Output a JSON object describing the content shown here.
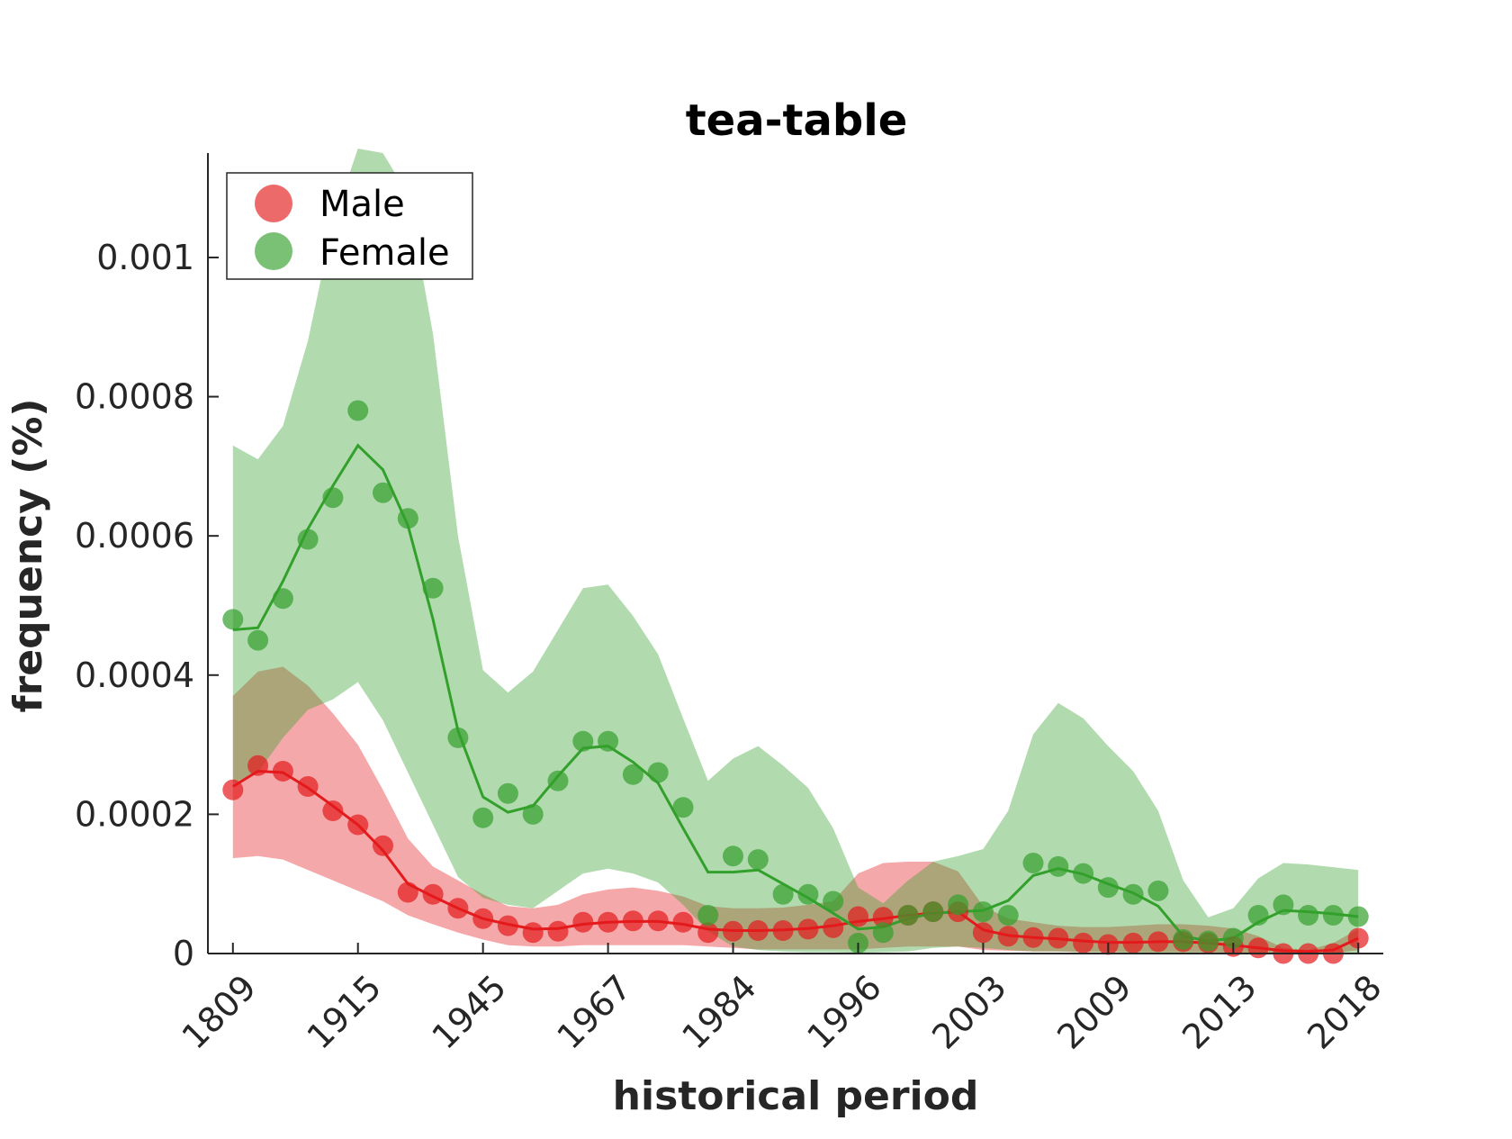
{
  "chart_data": {
    "type": "line",
    "title": "tea-table",
    "xlabel": "historical period",
    "ylabel": "frequency (%)",
    "ylim": [
      0,
      0.00115
    ],
    "yticks": [
      "0",
      "0.0002",
      "0.0004",
      "0.0006",
      "0.0008",
      "0.001"
    ],
    "ytick_values": [
      0,
      0.0002,
      0.0004,
      0.0006,
      0.0008,
      0.001
    ],
    "xtick_labels": [
      "1809",
      "1915",
      "1945",
      "1967",
      "1984",
      "1996",
      "2003",
      "2009",
      "2013",
      "2018"
    ],
    "xtick_positions": [
      1,
      6,
      11,
      16,
      21,
      26,
      31,
      36,
      41,
      46
    ],
    "xlim": [
      0,
      47
    ],
    "grid": false,
    "legend_position": "top-left",
    "series": [
      {
        "name": "Male",
        "color": "#e41a1c",
        "x": [
          1,
          2,
          3,
          4,
          5,
          6,
          7,
          8,
          9,
          10,
          11,
          12,
          13,
          14,
          15,
          16,
          17,
          18,
          19,
          20,
          21,
          22,
          23,
          24,
          25,
          26,
          27,
          28,
          29,
          30,
          31,
          32,
          33,
          34,
          35,
          36,
          37,
          38,
          39,
          40,
          41,
          42,
          43,
          44,
          45,
          46
        ],
        "points": [
          0.000235,
          0.00027,
          0.000262,
          0.00024,
          0.000205,
          0.000185,
          0.000155,
          8.8e-05,
          8.5e-05,
          6.5e-05,
          5e-05,
          4e-05,
          3e-05,
          3.2e-05,
          4.5e-05,
          4.5e-05,
          4.7e-05,
          4.7e-05,
          4.5e-05,
          3e-05,
          3.2e-05,
          3.3e-05,
          3.3e-05,
          3.5e-05,
          3.7e-05,
          5.3e-05,
          5.2e-05,
          5.5e-05,
          6e-05,
          6e-05,
          3e-05,
          2.5e-05,
          2.3e-05,
          2.2e-05,
          1.5e-05,
          1.3e-05,
          1.5e-05,
          1.7e-05,
          1.7e-05,
          1.5e-05,
          1e-05,
          8e-06,
          0,
          0,
          0,
          2.2e-05
        ],
        "line": [
          0.00024,
          0.000262,
          0.00026,
          0.000238,
          0.000212,
          0.000185,
          0.000148,
          0.0001,
          8.2e-05,
          6.5e-05,
          5e-05,
          4.2e-05,
          3.5e-05,
          3.6e-05,
          4.2e-05,
          4.5e-05,
          4.6e-05,
          4.6e-05,
          4.2e-05,
          3.5e-05,
          3.3e-05,
          3.3e-05,
          3.4e-05,
          3.6e-05,
          4e-05,
          4.6e-05,
          5e-05,
          5.5e-05,
          5.8e-05,
          6e-05,
          3.4e-05,
          2.6e-05,
          2.3e-05,
          2.1e-05,
          1.8e-05,
          1.6e-05,
          1.6e-05,
          1.7e-05,
          1.7e-05,
          1.5e-05,
          1.2e-05,
          8e-06,
          4e-06,
          3e-06,
          5e-06,
          2.2e-05
        ],
        "band_upper": [
          0.00037,
          0.000405,
          0.000412,
          0.000385,
          0.000345,
          0.0003,
          0.000235,
          0.000165,
          0.000125,
          0.000105,
          8.5e-05,
          6.8e-05,
          6.5e-05,
          7e-05,
          8.5e-05,
          9.2e-05,
          9.5e-05,
          9e-05,
          8.2e-05,
          6.8e-05,
          6.5e-05,
          6.5e-05,
          6.6e-05,
          7e-05,
          7.5e-05,
          0.000115,
          0.00013,
          0.000132,
          0.000132,
          0.000118,
          6.8e-05,
          5e-05,
          4.5e-05,
          4e-05,
          3.8e-05,
          3.8e-05,
          4e-05,
          4.2e-05,
          4.2e-05,
          4e-05,
          3.6e-05,
          2.5e-05,
          8e-06,
          5e-06,
          1.5e-05,
          3.5e-05
        ],
        "band_lower": [
          0.000137,
          0.00014,
          0.000135,
          0.00012,
          0.000105,
          9e-05,
          7.5e-05,
          5.5e-05,
          4.2e-05,
          3e-05,
          2e-05,
          1.2e-05,
          1e-05,
          1e-05,
          1.2e-05,
          1.2e-05,
          1.2e-05,
          1.2e-05,
          1.2e-05,
          1e-05,
          8e-06,
          6e-06,
          6e-06,
          6e-06,
          6e-06,
          6e-06,
          8e-06,
          1e-05,
          1e-05,
          1e-05,
          5e-06,
          4e-06,
          3e-06,
          3e-06,
          2e-06,
          2e-06,
          2e-06,
          2e-06,
          2e-06,
          2e-06,
          1e-06,
          1e-06,
          0,
          0,
          0,
          5e-06
        ]
      },
      {
        "name": "Female",
        "color": "#33a02c",
        "x": [
          1,
          2,
          3,
          4,
          5,
          6,
          7,
          8,
          9,
          10,
          11,
          12,
          13,
          14,
          15,
          16,
          17,
          18,
          19,
          20,
          21,
          22,
          23,
          24,
          25,
          26,
          27,
          28,
          29,
          30,
          31,
          32,
          33,
          34,
          35,
          36,
          37,
          38,
          39,
          40,
          41,
          42,
          43,
          44,
          45,
          46
        ],
        "points": [
          0.00048,
          0.00045,
          0.00051,
          0.000595,
          0.000655,
          0.00078,
          0.000662,
          0.000625,
          0.000525,
          0.00031,
          0.000195,
          0.00023,
          0.0002,
          0.000248,
          0.000305,
          0.000305,
          0.000257,
          0.00026,
          0.00021,
          5.5e-05,
          0.00014,
          0.000135,
          8.5e-05,
          8.5e-05,
          7.5e-05,
          1.5e-05,
          3e-05,
          5.5e-05,
          6e-05,
          7e-05,
          6e-05,
          5.5e-05,
          0.00013,
          0.000125,
          0.000115,
          9.5e-05,
          8.5e-05,
          9e-05,
          2e-05,
          1.8e-05,
          2.2e-05,
          5.5e-05,
          7e-05,
          5.5e-05,
          5.5e-05,
          5.3e-05
        ],
        "line": [
          0.000465,
          0.000468,
          0.000535,
          0.00061,
          0.000672,
          0.00073,
          0.000695,
          0.000615,
          0.00048,
          0.00032,
          0.000225,
          0.000203,
          0.000212,
          0.000255,
          0.000295,
          0.000298,
          0.000275,
          0.000245,
          0.00018,
          0.000117,
          0.000117,
          0.00012,
          0.0001,
          8e-05,
          5.8e-05,
          3.5e-05,
          3.8e-05,
          5e-05,
          5.8e-05,
          6e-05,
          6.2e-05,
          7.6e-05,
          0.000112,
          0.000122,
          0.000114,
          0.0001,
          8.7e-05,
          6.8e-05,
          2.5e-05,
          1.8e-05,
          2.2e-05,
          4.5e-05,
          6.2e-05,
          6e-05,
          5.7e-05,
          5.3e-05
        ],
        "band_upper": [
          0.00073,
          0.00071,
          0.000758,
          0.00088,
          0.00105,
          0.00116,
          0.00115,
          0.00109,
          0.00089,
          0.0006,
          0.000407,
          0.000375,
          0.000405,
          0.000465,
          0.000525,
          0.00053,
          0.000485,
          0.00043,
          0.000338,
          0.000248,
          0.00028,
          0.000298,
          0.00027,
          0.000238,
          0.00018,
          9.5e-05,
          7.2e-05,
          0.000105,
          0.000132,
          0.00014,
          0.00015,
          0.000205,
          0.000315,
          0.00036,
          0.000338,
          0.000298,
          0.000262,
          0.000205,
          0.000105,
          5.2e-05,
          6.5e-05,
          0.000108,
          0.00013,
          0.000128,
          0.000124,
          0.00012
        ],
        "band_lower": [
          0.000245,
          0.00026,
          0.00031,
          0.00035,
          0.000365,
          0.00039,
          0.000335,
          0.00026,
          0.000185,
          0.00011,
          8e-05,
          7e-05,
          6.5e-05,
          9e-05,
          0.000115,
          0.000122,
          0.000115,
          0.000102,
          7e-05,
          3.2e-05,
          1e-05,
          5e-06,
          3e-06,
          2e-06,
          2e-06,
          1e-06,
          2e-06,
          3e-06,
          8e-06,
          1e-05,
          8e-06,
          5e-06,
          3e-06,
          3e-06,
          2e-06,
          2e-06,
          1e-06,
          1e-06,
          0,
          0,
          0,
          0,
          0,
          0,
          0,
          0
        ]
      }
    ]
  }
}
